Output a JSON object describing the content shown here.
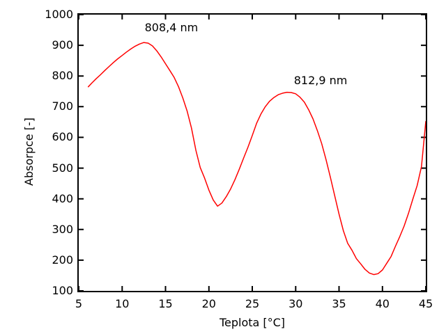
{
  "chart_data": {
    "type": "line",
    "title": "",
    "xlabel": "Teplota [°C]",
    "ylabel": "Absorpce [-]",
    "xlim": [
      5,
      45
    ],
    "ylim": [
      100,
      1000
    ],
    "xticks": [
      5,
      10,
      15,
      20,
      25,
      30,
      35,
      40,
      45
    ],
    "yticks": [
      100,
      200,
      300,
      400,
      500,
      600,
      700,
      800,
      900,
      1000
    ],
    "grid": false,
    "legend": "none",
    "frame": "closed-box-with-mirrored-inward-ticks",
    "line_color": "#ff0000",
    "axis_color": "#000000",
    "background_color": "#ffffff",
    "annotations": [
      {
        "text": "808,4 nm",
        "x": 12.6,
        "y": 957
      },
      {
        "text": "812,9 nm",
        "x": 29.8,
        "y": 785
      }
    ],
    "series": [
      {
        "name": "absorpce-curve",
        "points": [
          [
            6.1,
            765
          ],
          [
            6.5,
            777
          ],
          [
            7.0,
            791
          ],
          [
            7.5,
            804
          ],
          [
            8.0,
            818
          ],
          [
            8.5,
            831
          ],
          [
            9.0,
            844
          ],
          [
            9.5,
            856
          ],
          [
            10.0,
            867
          ],
          [
            10.5,
            878
          ],
          [
            11.0,
            888
          ],
          [
            11.5,
            897
          ],
          [
            12.0,
            904
          ],
          [
            12.5,
            909
          ],
          [
            13.0,
            907
          ],
          [
            13.5,
            898
          ],
          [
            14.0,
            882
          ],
          [
            14.5,
            862
          ],
          [
            15.0,
            840
          ],
          [
            15.5,
            818
          ],
          [
            16.0,
            795
          ],
          [
            16.5,
            765
          ],
          [
            17.0,
            728
          ],
          [
            17.5,
            685
          ],
          [
            18.0,
            630
          ],
          [
            18.5,
            558
          ],
          [
            19.0,
            502
          ],
          [
            19.5,
            468
          ],
          [
            20.0,
            428
          ],
          [
            20.5,
            396
          ],
          [
            21.0,
            376
          ],
          [
            21.5,
            386
          ],
          [
            22.0,
            407
          ],
          [
            22.5,
            432
          ],
          [
            23.0,
            462
          ],
          [
            23.5,
            496
          ],
          [
            24.0,
            532
          ],
          [
            24.5,
            568
          ],
          [
            25.0,
            606
          ],
          [
            25.5,
            646
          ],
          [
            26.0,
            676
          ],
          [
            26.5,
            700
          ],
          [
            27.0,
            718
          ],
          [
            27.5,
            730
          ],
          [
            28.0,
            739
          ],
          [
            28.5,
            744
          ],
          [
            29.0,
            747
          ],
          [
            29.5,
            746
          ],
          [
            30.0,
            742
          ],
          [
            30.5,
            731
          ],
          [
            31.0,
            715
          ],
          [
            31.5,
            690
          ],
          [
            32.0,
            660
          ],
          [
            32.5,
            622
          ],
          [
            33.0,
            580
          ],
          [
            33.5,
            528
          ],
          [
            34.0,
            470
          ],
          [
            34.5,
            410
          ],
          [
            35.0,
            350
          ],
          [
            35.5,
            296
          ],
          [
            36.0,
            255
          ],
          [
            36.5,
            232
          ],
          [
            37.0,
            205
          ],
          [
            37.5,
            188
          ],
          [
            38.0,
            170
          ],
          [
            38.5,
            158
          ],
          [
            39.0,
            153
          ],
          [
            39.5,
            156
          ],
          [
            40.0,
            168
          ],
          [
            40.5,
            190
          ],
          [
            41.0,
            212
          ],
          [
            41.5,
            245
          ],
          [
            42.0,
            277
          ],
          [
            42.5,
            311
          ],
          [
            43.0,
            352
          ],
          [
            43.5,
            398
          ],
          [
            44.0,
            443
          ],
          [
            44.5,
            505
          ],
          [
            45.0,
            652
          ]
        ]
      }
    ]
  }
}
